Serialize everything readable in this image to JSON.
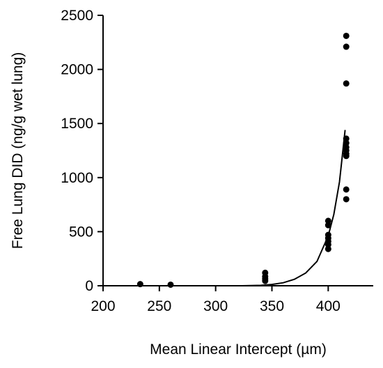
{
  "chart_data": {
    "type": "scatter",
    "xlabel": "Mean Linear Intercept (µm)",
    "ylabel": "Free Lung DID (ng/g wet lung)",
    "xlim": [
      200,
      440
    ],
    "ylim": [
      0,
      2500
    ],
    "x_ticks": [
      200,
      250,
      300,
      350,
      400
    ],
    "y_ticks": [
      0,
      500,
      1000,
      1500,
      2000,
      2500
    ],
    "grid": false,
    "points": [
      {
        "x": 233,
        "y": 15
      },
      {
        "x": 260,
        "y": 10
      },
      {
        "x": 344,
        "y": 120
      },
      {
        "x": 344,
        "y": 85
      },
      {
        "x": 344,
        "y": 65
      },
      {
        "x": 344,
        "y": 45
      },
      {
        "x": 400,
        "y": 600
      },
      {
        "x": 400,
        "y": 560
      },
      {
        "x": 400,
        "y": 470
      },
      {
        "x": 400,
        "y": 440
      },
      {
        "x": 400,
        "y": 410
      },
      {
        "x": 400,
        "y": 380
      },
      {
        "x": 400,
        "y": 340
      },
      {
        "x": 416,
        "y": 2310
      },
      {
        "x": 416,
        "y": 2210
      },
      {
        "x": 416,
        "y": 1870
      },
      {
        "x": 416,
        "y": 1360
      },
      {
        "x": 416,
        "y": 1320
      },
      {
        "x": 416,
        "y": 1280
      },
      {
        "x": 416,
        "y": 1250
      },
      {
        "x": 416,
        "y": 1220
      },
      {
        "x": 416,
        "y": 1200
      },
      {
        "x": 416,
        "y": 890
      },
      {
        "x": 416,
        "y": 800
      }
    ],
    "fit_curve": {
      "type": "exponential",
      "x": [
        323,
        330,
        340,
        350,
        360,
        370,
        380,
        390,
        400,
        405,
        410,
        415
      ],
      "y": [
        0,
        1,
        4,
        12,
        28,
        60,
        118,
        225,
        460,
        660,
        960,
        1440
      ]
    }
  }
}
